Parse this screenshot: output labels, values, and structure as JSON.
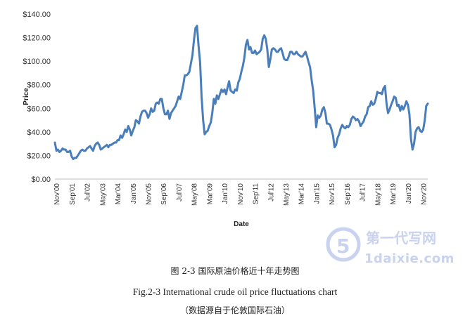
{
  "chart_data": {
    "type": "line",
    "title": "",
    "xlabel": "Date",
    "ylabel": "Price",
    "ylim": [
      0,
      140
    ],
    "y_ticks": [
      "$0.00",
      "$20.00",
      "$40.00",
      "$60.00",
      "$80.00",
      "$100.00",
      "$120.00",
      "$140.00"
    ],
    "x_ticks": [
      "Nov'00",
      "Sep'01",
      "Jul'02",
      "May'03",
      "Mar'04",
      "Jan'05",
      "Nov'05",
      "Sep'06",
      "Jul'07",
      "May'08",
      "Mar'09",
      "Jan'10",
      "Nov'10",
      "Sep'11",
      "Jul'12",
      "May'13",
      "Mar'14",
      "Jan'15",
      "Nov'15",
      "Sep'16",
      "Jul'17",
      "May'18",
      "Mar'19",
      "Jan'20",
      "Nov'20"
    ],
    "x_start": "Oct'00",
    "x_end": "Feb'21",
    "line_color": "#4a7ebb",
    "grid": false,
    "series": [
      {
        "name": "",
        "points": [
          [
            "Oct'00",
            31
          ],
          [
            "Nov'00",
            24
          ],
          [
            "Dec'00",
            25
          ],
          [
            "Jan'01",
            23
          ],
          [
            "Feb'01",
            24
          ],
          [
            "Mar'01",
            26
          ],
          [
            "Apr'01",
            25
          ],
          [
            "May'01",
            25
          ],
          [
            "Jun'01",
            23
          ],
          [
            "Jul'01",
            23
          ],
          [
            "Aug'01",
            24
          ],
          [
            "Sep'01",
            19
          ],
          [
            "Oct'01",
            17
          ],
          [
            "Nov'01",
            18
          ],
          [
            "Dec'01",
            18
          ],
          [
            "Jan'02",
            20
          ],
          [
            "Feb'02",
            22
          ],
          [
            "Mar'02",
            24
          ],
          [
            "Apr'02",
            25
          ],
          [
            "May'02",
            24
          ],
          [
            "Jun'02",
            24
          ],
          [
            "Jul'02",
            26
          ],
          [
            "Aug'02",
            27
          ],
          [
            "Sep'02",
            28
          ],
          [
            "Oct'02",
            26
          ],
          [
            "Nov'02",
            24
          ],
          [
            "Dec'02",
            28
          ],
          [
            "Jan'03",
            30
          ],
          [
            "Feb'03",
            31
          ],
          [
            "Mar'03",
            29
          ],
          [
            "Apr'03",
            25
          ],
          [
            "May'03",
            26
          ],
          [
            "Jun'03",
            27
          ],
          [
            "Jul'03",
            28
          ],
          [
            "Aug'03",
            29
          ],
          [
            "Sep'03",
            27
          ],
          [
            "Oct'03",
            29
          ],
          [
            "Nov'03",
            29
          ],
          [
            "Dec'03",
            30
          ],
          [
            "Jan'04",
            31
          ],
          [
            "Feb'04",
            31
          ],
          [
            "Mar'04",
            33
          ],
          [
            "Apr'04",
            33
          ],
          [
            "May'04",
            37
          ],
          [
            "Jun'04",
            35
          ],
          [
            "Jul'04",
            38
          ],
          [
            "Aug'04",
            42
          ],
          [
            "Sep'04",
            40
          ],
          [
            "Oct'04",
            45
          ],
          [
            "Nov'04",
            42
          ],
          [
            "Dec'04",
            37
          ],
          [
            "Jan'05",
            41
          ],
          [
            "Feb'05",
            44
          ],
          [
            "Mar'05",
            50
          ],
          [
            "Apr'05",
            49
          ],
          [
            "May'05",
            47
          ],
          [
            "Jun'05",
            53
          ],
          [
            "Jul'05",
            57
          ],
          [
            "Aug'05",
            58
          ],
          [
            "Sep'05",
            58
          ],
          [
            "Oct'05",
            56
          ],
          [
            "Nov'05",
            52
          ],
          [
            "Dec'05",
            55
          ],
          [
            "Jan'06",
            60
          ],
          [
            "Feb'06",
            57
          ],
          [
            "Mar'06",
            58
          ],
          [
            "Apr'06",
            64
          ],
          [
            "May'06",
            65
          ],
          [
            "Jun'06",
            64
          ],
          [
            "Jul'06",
            68
          ],
          [
            "Aug'06",
            68
          ],
          [
            "Sep'06",
            60
          ],
          [
            "Oct'06",
            55
          ],
          [
            "Nov'06",
            55
          ],
          [
            "Dec'06",
            58
          ],
          [
            "Jan'07",
            51
          ],
          [
            "Feb'07",
            56
          ],
          [
            "Mar'07",
            58
          ],
          [
            "Apr'07",
            60
          ],
          [
            "May'07",
            62
          ],
          [
            "Jun'07",
            66
          ],
          [
            "Jul'07",
            70
          ],
          [
            "Aug'07",
            68
          ],
          [
            "Sep'07",
            74
          ],
          [
            "Oct'07",
            80
          ],
          [
            "Nov'07",
            88
          ],
          [
            "Dec'07",
            88
          ],
          [
            "Jan'08",
            89
          ],
          [
            "Feb'08",
            91
          ],
          [
            "Mar'08",
            98
          ],
          [
            "Apr'08",
            105
          ],
          [
            "May'08",
            118
          ],
          [
            "Jun'08",
            128
          ],
          [
            "Jul'08",
            130
          ],
          [
            "Aug'08",
            113
          ],
          [
            "Sep'08",
            99
          ],
          [
            "Oct'08",
            70
          ],
          [
            "Nov'08",
            50
          ],
          [
            "Dec'08",
            38
          ],
          [
            "Jan'09",
            40
          ],
          [
            "Feb'09",
            41
          ],
          [
            "Mar'09",
            45
          ],
          [
            "Apr'09",
            48
          ],
          [
            "May'09",
            56
          ],
          [
            "Jun'09",
            68
          ],
          [
            "Jul'09",
            64
          ],
          [
            "Aug'09",
            71
          ],
          [
            "Sep'09",
            68
          ],
          [
            "Oct'09",
            72
          ],
          [
            "Nov'09",
            76
          ],
          [
            "Dec'09",
            74
          ],
          [
            "Jan'10",
            76
          ],
          [
            "Feb'10",
            72
          ],
          [
            "Mar'10",
            78
          ],
          [
            "Apr'10",
            83
          ],
          [
            "May'10",
            75
          ],
          [
            "Jun'10",
            74
          ],
          [
            "Jul'10",
            73
          ],
          [
            "Aug'10",
            76
          ],
          [
            "Sep'10",
            75
          ],
          [
            "Oct'10",
            82
          ],
          [
            "Nov'10",
            85
          ],
          [
            "Dec'10",
            91
          ],
          [
            "Jan'11",
            96
          ],
          [
            "Feb'11",
            103
          ],
          [
            "Mar'11",
            114
          ],
          [
            "Apr'11",
            118
          ],
          [
            "May'11",
            110
          ],
          [
            "Jun'11",
            112
          ],
          [
            "Jul'11",
            107
          ],
          [
            "Aug'11",
            107
          ],
          [
            "Sep'11",
            109
          ],
          [
            "Oct'11",
            106
          ],
          [
            "Nov'11",
            107
          ],
          [
            "Dec'11",
            108
          ],
          [
            "Jan'12",
            110
          ],
          [
            "Feb'12",
            119
          ],
          [
            "Mar'12",
            122
          ],
          [
            "Apr'12",
            119
          ],
          [
            "May'12",
            110
          ],
          [
            "Jun'12",
            95
          ],
          [
            "Jul'12",
            102
          ],
          [
            "Aug'12",
            110
          ],
          [
            "Sep'12",
            111
          ],
          [
            "Oct'12",
            110
          ],
          [
            "Nov'12",
            108
          ],
          [
            "Dec'12",
            108
          ],
          [
            "Jan'13",
            110
          ],
          [
            "Feb'13",
            111
          ],
          [
            "Mar'13",
            107
          ],
          [
            "Apr'13",
            102
          ],
          [
            "May'13",
            101
          ],
          [
            "Jun'13",
            101
          ],
          [
            "Jul'13",
            104
          ],
          [
            "Aug'13",
            108
          ],
          [
            "Sep'13",
            108
          ],
          [
            "Oct'13",
            106
          ],
          [
            "Nov'13",
            106
          ],
          [
            "Dec'13",
            108
          ],
          [
            "Jan'14",
            106
          ],
          [
            "Feb'14",
            105
          ],
          [
            "Mar'14",
            104
          ],
          [
            "Apr'14",
            104
          ],
          [
            "May'14",
            106
          ],
          [
            "Jun'14",
            108
          ],
          [
            "Jul'14",
            104
          ],
          [
            "Aug'14",
            99
          ],
          [
            "Sep'14",
            95
          ],
          [
            "Oct'14",
            84
          ],
          [
            "Nov'14",
            75
          ],
          [
            "Dec'14",
            60
          ],
          [
            "Jan'15",
            44
          ],
          [
            "Feb'15",
            54
          ],
          [
            "Mar'15",
            52
          ],
          [
            "Apr'15",
            54
          ],
          [
            "May'15",
            59
          ],
          [
            "Jun'15",
            61
          ],
          [
            "Jul'15",
            56
          ],
          [
            "Aug'15",
            47
          ],
          [
            "Sep'15",
            47
          ],
          [
            "Oct'15",
            46
          ],
          [
            "Nov'15",
            42
          ],
          [
            "Dec'15",
            37
          ],
          [
            "Jan'16",
            27
          ],
          [
            "Feb'16",
            29
          ],
          [
            "Mar'16",
            35
          ],
          [
            "Apr'16",
            38
          ],
          [
            "May'16",
            43
          ],
          [
            "Jun'16",
            46
          ],
          [
            "Jul'16",
            44
          ],
          [
            "Aug'16",
            43
          ],
          [
            "Sep'16",
            45
          ],
          [
            "Oct'16",
            44
          ],
          [
            "Nov'16",
            46
          ],
          [
            "Dec'16",
            51
          ],
          [
            "Jan'17",
            53
          ],
          [
            "Feb'17",
            52
          ],
          [
            "Mar'17",
            50
          ],
          [
            "Apr'17",
            51
          ],
          [
            "May'17",
            49
          ],
          [
            "Jun'17",
            45
          ],
          [
            "Jul'17",
            47
          ],
          [
            "Aug'17",
            49
          ],
          [
            "Sep'17",
            53
          ],
          [
            "Oct'17",
            55
          ],
          [
            "Nov'17",
            61
          ],
          [
            "Dec'17",
            62
          ],
          [
            "Jan'18",
            66
          ],
          [
            "Feb'18",
            63
          ],
          [
            "Mar'18",
            64
          ],
          [
            "Apr'18",
            68
          ],
          [
            "May'18",
            74
          ],
          [
            "Jun'18",
            73
          ],
          [
            "Jul'18",
            73
          ],
          [
            "Aug'18",
            72
          ],
          [
            "Sep'18",
            77
          ],
          [
            "Oct'18",
            79
          ],
          [
            "Nov'18",
            64
          ],
          [
            "Dec'18",
            56
          ],
          [
            "Jan'19",
            59
          ],
          [
            "Feb'19",
            63
          ],
          [
            "Mar'19",
            66
          ],
          [
            "Apr'19",
            70
          ],
          [
            "May'19",
            69
          ],
          [
            "Jun'19",
            62
          ],
          [
            "Jul'19",
            63
          ],
          [
            "Aug'19",
            58
          ],
          [
            "Sep'19",
            62
          ],
          [
            "Oct'19",
            59
          ],
          [
            "Nov'19",
            62
          ],
          [
            "Dec'19",
            66
          ],
          [
            "Jan'20",
            63
          ],
          [
            "Feb'20",
            55
          ],
          [
            "Mar'20",
            34
          ],
          [
            "Apr'20",
            25
          ],
          [
            "May'20",
            30
          ],
          [
            "Jun'20",
            40
          ],
          [
            "Jul'20",
            43
          ],
          [
            "Aug'20",
            44
          ],
          [
            "Sep'20",
            41
          ],
          [
            "Oct'20",
            40
          ],
          [
            "Nov'20",
            42
          ],
          [
            "Dec'20",
            50
          ],
          [
            "Jan'21",
            62
          ],
          [
            "Feb'21",
            64
          ]
        ]
      }
    ]
  },
  "captions": {
    "cn": "图 2-3  国际原油价格近十年走势图",
    "en": "Fig.2-3 International crude oil price fluctuations chart",
    "source": "（数据源自于伦敦国际石油）"
  },
  "watermark": {
    "text": "1daixie.com",
    "logo_text": "第一代写网",
    "color": "#c9d2ee"
  }
}
